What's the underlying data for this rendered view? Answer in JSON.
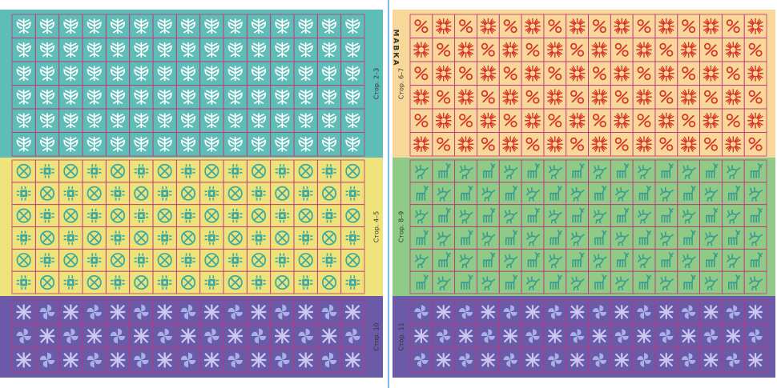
{
  "left_sheet": {
    "sections": [
      {
        "label": "Стор. 2–3"
      },
      {
        "label": "Стор. 4–5"
      },
      {
        "label": "Стор. 10"
      }
    ]
  },
  "right_sheet": {
    "logo": "МАВКА",
    "sections": [
      {
        "label": "Стор. 6–7"
      },
      {
        "label": "Стор. 8–9"
      },
      {
        "label": "Стор. 11"
      }
    ]
  }
}
